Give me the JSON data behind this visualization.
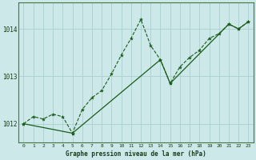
{
  "title": "Graphe pression niveau de la mer (hPa)",
  "background_color": "#cce8e8",
  "grid_color": "#aacfcf",
  "line_color": "#1a5c1a",
  "xlim": [
    -0.5,
    23.5
  ],
  "ylim": [
    1011.6,
    1014.55
  ],
  "yticks": [
    1012,
    1013,
    1014
  ],
  "xticks": [
    0,
    1,
    2,
    3,
    4,
    5,
    6,
    7,
    8,
    9,
    10,
    11,
    12,
    13,
    14,
    15,
    16,
    17,
    18,
    19,
    20,
    21,
    22,
    23
  ],
  "series_volatile": {
    "x": [
      0,
      1,
      2,
      3,
      4,
      5,
      6,
      7,
      8,
      9,
      10,
      11,
      12,
      13,
      14,
      15,
      16,
      17,
      18,
      19,
      20,
      21,
      22,
      23
    ],
    "y": [
      1012.0,
      1012.15,
      1012.1,
      1012.2,
      1012.15,
      1011.8,
      1012.3,
      1012.55,
      1012.7,
      1013.05,
      1013.45,
      1013.8,
      1014.2,
      1013.65,
      1013.35,
      1012.85,
      1013.2,
      1013.4,
      1013.55,
      1013.8,
      1013.9,
      1014.1,
      1014.0,
      1014.15
    ]
  },
  "series_smooth": {
    "x": [
      0,
      5,
      14,
      15,
      21,
      22,
      23
    ],
    "y": [
      1012.0,
      1011.8,
      1013.35,
      1012.85,
      1014.1,
      1014.0,
      1014.15
    ]
  }
}
